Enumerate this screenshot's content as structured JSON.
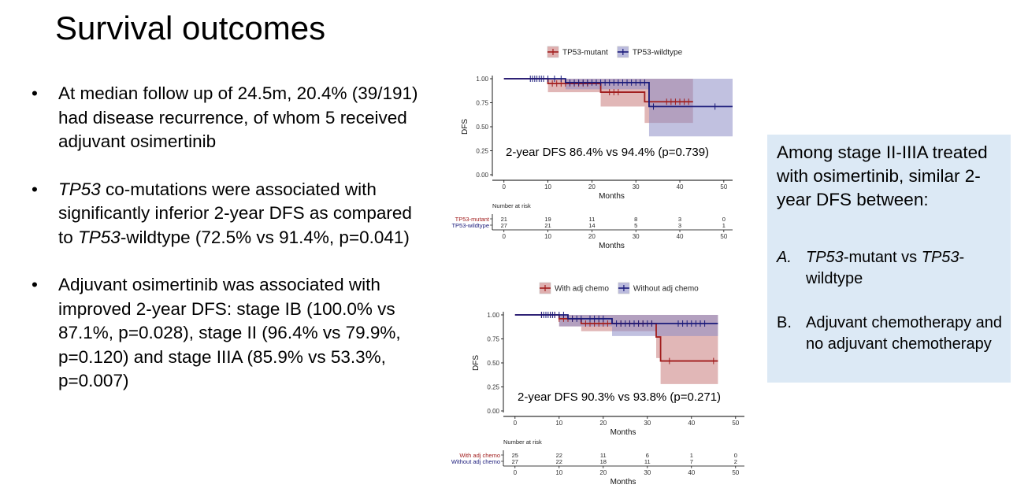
{
  "slide": {
    "title": "Survival outcomes",
    "bullets": [
      {
        "symbol": "•",
        "parts": [
          {
            "text": "At median follow up of 24.5m, 20.4% (39/191) had disease recurrence, of whom 5 received adjuvant osimertinib",
            "italic": false
          }
        ]
      },
      {
        "symbol": "•",
        "parts": [
          {
            "text": "TP53",
            "italic": true
          },
          {
            "text": " co-mutations were associated with significantly inferior 2-year DFS as compared to ",
            "italic": false
          },
          {
            "text": "TP53",
            "italic": true
          },
          {
            "text": "-wildtype (72.5% vs 91.4%, p=0.041)",
            "italic": false
          }
        ]
      },
      {
        "symbol": "•",
        "parts": [
          {
            "text": "Adjuvant osimertinib was associated with improved 2-year DFS: stage IB (100.0% vs 87.1%, p=0.028), stage II (96.4% vs 79.9%, p=0.120) and stage IIIA (85.9% vs 53.3%, p=0.007)",
            "italic": false
          }
        ]
      }
    ],
    "sidebox": {
      "heading": "Among stage II-IIIA treated with osimertinib, similar 2-year DFS between:",
      "items": [
        {
          "label": "A.",
          "label_italic": true,
          "parts": [
            {
              "text": "TP53",
              "italic": true
            },
            {
              "text": "-mutant vs ",
              "italic": false
            },
            {
              "text": "TP53",
              "italic": true
            },
            {
              "text": "-wildtype",
              "italic": false
            }
          ]
        },
        {
          "label": "B.",
          "label_italic": false,
          "parts": [
            {
              "text": "Adjuvant chemotherapy and no adjuvant chemotherapy",
              "italic": false
            }
          ]
        }
      ]
    }
  },
  "chart_data": [
    {
      "type": "line",
      "title": "",
      "annotation": "2-year DFS 86.4% vs 94.4% (p=0.739)",
      "xlabel": "Months",
      "ylabel": "DFS",
      "xlim": [
        -3,
        52
      ],
      "ylim": [
        0,
        1
      ],
      "xticks": [
        0,
        10,
        20,
        30,
        40,
        50
      ],
      "yticks": [
        0.0,
        0.25,
        0.5,
        0.75,
        1.0
      ],
      "ytick_labels": [
        "0.00",
        "0.25",
        "0.50",
        "0.75",
        "1.00"
      ],
      "grid": false,
      "legend_position": "top",
      "series": [
        {
          "name": "TP53-mutant",
          "color": "#a11d1d",
          "band_color": "#c97b7b",
          "steps": [
            [
              0,
              1.0
            ],
            [
              10,
              0.95
            ],
            [
              22,
              0.86
            ],
            [
              32,
              0.76
            ],
            [
              43,
              0.76
            ]
          ],
          "censor": [
            11,
            12,
            13,
            14,
            15,
            16,
            17,
            18,
            19,
            24,
            25,
            26,
            37,
            38,
            39,
            40,
            41,
            42
          ],
          "band": [
            [
              0,
              1.0,
              1.0
            ],
            [
              10,
              0.86,
              1.0
            ],
            [
              22,
              0.71,
              1.0
            ],
            [
              32,
              0.54,
              1.0
            ],
            [
              43,
              0.54,
              1.0
            ]
          ]
        },
        {
          "name": "TP53-wildtype",
          "color": "#1a1a7a",
          "band_color": "#8e8ec6",
          "steps": [
            [
              0,
              1.0
            ],
            [
              14,
              0.96
            ],
            [
              33,
              0.71
            ],
            [
              52,
              0.71
            ]
          ],
          "censor": [
            6,
            6.5,
            7,
            7.5,
            8,
            8.5,
            9,
            10,
            11.5,
            13,
            15,
            16,
            17,
            18,
            19,
            20,
            21,
            22,
            23,
            24,
            25,
            26,
            27,
            28,
            29,
            30,
            31,
            32,
            34,
            48
          ],
          "band": [
            [
              0,
              1.0,
              1.0
            ],
            [
              14,
              0.89,
              1.0
            ],
            [
              33,
              0.4,
              1.0
            ],
            [
              52,
              0.4,
              1.0
            ]
          ]
        }
      ],
      "risk_table": {
        "title": "Number at risk",
        "times": [
          0,
          10,
          20,
          30,
          40,
          50
        ],
        "rows": [
          {
            "label": "TP53-mutant",
            "color": "#a11d1d",
            "values": [
              "21",
              "19",
              "11",
              "8",
              "3",
              "0"
            ]
          },
          {
            "label": "TP53-wildtype",
            "color": "#1a1a7a",
            "values": [
              "27",
              "21",
              "14",
              "5",
              "3",
              "1"
            ]
          }
        ],
        "xlabel": "Months"
      }
    },
    {
      "type": "line",
      "title": "",
      "annotation": "2-year DFS 90.3% vs 93.8% (p=0.271)",
      "xlabel": "Months",
      "ylabel": "DFS",
      "xlim": [
        -3,
        52
      ],
      "ylim": [
        0,
        1
      ],
      "xticks": [
        0,
        10,
        20,
        30,
        40,
        50
      ],
      "yticks": [
        0.0,
        0.25,
        0.5,
        0.75,
        1.0
      ],
      "ytick_labels": [
        "0.00",
        "0.25",
        "0.50",
        "0.75",
        "1.00"
      ],
      "grid": false,
      "legend_position": "top",
      "series": [
        {
          "name": "With adj chemo",
          "color": "#a11d1d",
          "band_color": "#c97b7b",
          "steps": [
            [
              0,
              1.0
            ],
            [
              10,
              0.96
            ],
            [
              15,
              0.91
            ],
            [
              32,
              0.77
            ],
            [
              33,
              0.52
            ],
            [
              46,
              0.52
            ]
          ],
          "censor": [
            6,
            7,
            8,
            9,
            10,
            11,
            12,
            13,
            16,
            17,
            18,
            19,
            20,
            21,
            24,
            26,
            28,
            29,
            31,
            35,
            45
          ],
          "band": [
            [
              0,
              1.0,
              1.0
            ],
            [
              10,
              0.88,
              1.0
            ],
            [
              15,
              0.83,
              1.0
            ],
            [
              32,
              0.55,
              1.0
            ],
            [
              33,
              0.28,
              1.0
            ],
            [
              46,
              0.28,
              1.0
            ]
          ]
        },
        {
          "name": "Without adj chemo",
          "color": "#1a1a7a",
          "band_color": "#8e8ec6",
          "steps": [
            [
              0,
              1.0
            ],
            [
              12,
              0.96
            ],
            [
              22,
              0.91
            ],
            [
              46,
              0.91
            ]
          ],
          "censor": [
            6,
            6.5,
            7,
            7.5,
            8,
            8.5,
            9,
            10,
            11,
            13,
            14,
            15,
            17,
            18,
            19,
            20,
            23,
            24,
            25,
            26,
            27,
            28,
            29,
            30,
            31,
            37,
            38,
            39,
            40,
            41,
            42,
            43
          ],
          "band": [
            [
              0,
              1.0,
              1.0
            ],
            [
              10,
              0.88,
              1.0
            ],
            [
              22,
              0.78,
              1.0
            ],
            [
              46,
              0.78,
              1.0
            ]
          ]
        }
      ],
      "risk_table": {
        "title": "Number at risk",
        "times": [
          0,
          10,
          20,
          30,
          40,
          50
        ],
        "rows": [
          {
            "label": "With adj chemo",
            "color": "#a11d1d",
            "values": [
              "25",
              "22",
              "11",
              "6",
              "1",
              "0"
            ]
          },
          {
            "label": "Without adj chemo",
            "color": "#1a1a7a",
            "values": [
              "27",
              "22",
              "18",
              "11",
              "7",
              "2"
            ]
          }
        ],
        "xlabel": "Months"
      }
    }
  ]
}
